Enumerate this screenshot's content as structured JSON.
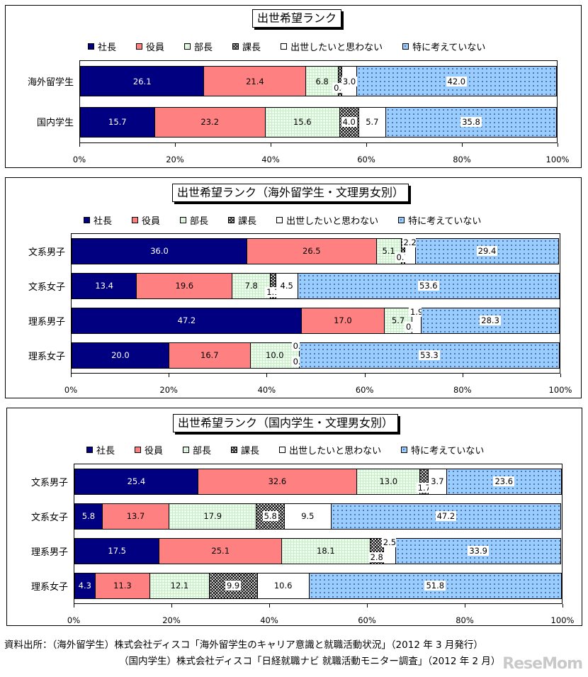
{
  "legend": [
    {
      "label": "社長",
      "color": "#000080"
    },
    {
      "label": "役員",
      "color": "#ff8080"
    },
    {
      "label": "部長",
      "color": "#eaffea"
    },
    {
      "label": "課長",
      "color": "#bbbbbb"
    },
    {
      "label": "出世したいと思わない",
      "color": "#ffffff"
    },
    {
      "label": "特に考えていない",
      "color": "#99ccff"
    }
  ],
  "axis_ticks": [
    "0%",
    "20%",
    "40%",
    "60%",
    "80%",
    "100%"
  ],
  "chart_data": [
    {
      "type": "bar",
      "stacked": "percent",
      "orientation": "horizontal",
      "title": "出世希望ランク",
      "categories": [
        "海外留学生",
        "国内学生"
      ],
      "series": [
        {
          "name": "社長",
          "values": [
            26.1,
            15.7
          ]
        },
        {
          "name": "役員",
          "values": [
            21.4,
            23.2
          ]
        },
        {
          "name": "部長",
          "values": [
            6.8,
            15.6
          ]
        },
        {
          "name": "課長",
          "values": [
            0.8,
            4.0
          ]
        },
        {
          "name": "出世したいと思わない",
          "values": [
            3.0,
            5.7
          ]
        },
        {
          "name": "特に考えていない",
          "values": [
            42.0,
            35.8
          ]
        }
      ],
      "xlim": [
        0,
        100
      ],
      "xticks": [
        "0%",
        "20%",
        "40%",
        "60%",
        "80%",
        "100%"
      ],
      "legend_position": "top"
    },
    {
      "type": "bar",
      "stacked": "percent",
      "orientation": "horizontal",
      "title": "出世希望ランク（海外留学生・文理男女別）",
      "categories": [
        "文系男子",
        "文系女子",
        "理系男子",
        "理系女子"
      ],
      "series": [
        {
          "name": "社長",
          "values": [
            36.0,
            13.4,
            47.2,
            20.0
          ]
        },
        {
          "name": "役員",
          "values": [
            26.5,
            19.6,
            17.0,
            16.7
          ]
        },
        {
          "name": "部長",
          "values": [
            5.1,
            7.8,
            5.7,
            10.0
          ]
        },
        {
          "name": "課長",
          "values": [
            0.7,
            1.1,
            0.0,
            0.0
          ]
        },
        {
          "name": "出世したいと思わない",
          "values": [
            2.2,
            4.5,
            1.9,
            0.0
          ]
        },
        {
          "name": "特に考えていない",
          "values": [
            29.4,
            53.6,
            28.3,
            53.3
          ]
        }
      ],
      "xlim": [
        0,
        100
      ],
      "xticks": [
        "0%",
        "20%",
        "40%",
        "60%",
        "80%",
        "100%"
      ],
      "legend_position": "top"
    },
    {
      "type": "bar",
      "stacked": "percent",
      "orientation": "horizontal",
      "title": "出世希望ランク（国内学生・文理男女別）",
      "categories": [
        "文系男子",
        "文系女子",
        "理系男子",
        "理系女子"
      ],
      "series": [
        {
          "name": "社長",
          "values": [
            25.4,
            5.8,
            17.5,
            4.3
          ]
        },
        {
          "name": "役員",
          "values": [
            32.6,
            13.7,
            25.1,
            11.3
          ]
        },
        {
          "name": "部長",
          "values": [
            13.0,
            17.9,
            18.1,
            12.1
          ]
        },
        {
          "name": "課長",
          "values": [
            1.7,
            5.8,
            2.8,
            9.9
          ]
        },
        {
          "name": "出世したいと思わない",
          "values": [
            3.7,
            9.5,
            2.5,
            10.6
          ]
        },
        {
          "name": "特に考えていない",
          "values": [
            23.6,
            47.2,
            33.9,
            51.8
          ]
        }
      ],
      "xlim": [
        0,
        100
      ],
      "xticks": [
        "0%",
        "20%",
        "40%",
        "60%",
        "80%",
        "100%"
      ],
      "legend_position": "top"
    }
  ],
  "footer": {
    "line1": "資料出所：（海外留学生）株式会社ディスコ「海外留学生のキャリア意識と就職活動状況」（2012 年 3 月発行）",
    "line2": "（国内学生）株式会社ディスコ「日経就職ナビ 就職活動モニター調査」（2012 年 2 月）"
  },
  "watermark": "ReseMom"
}
